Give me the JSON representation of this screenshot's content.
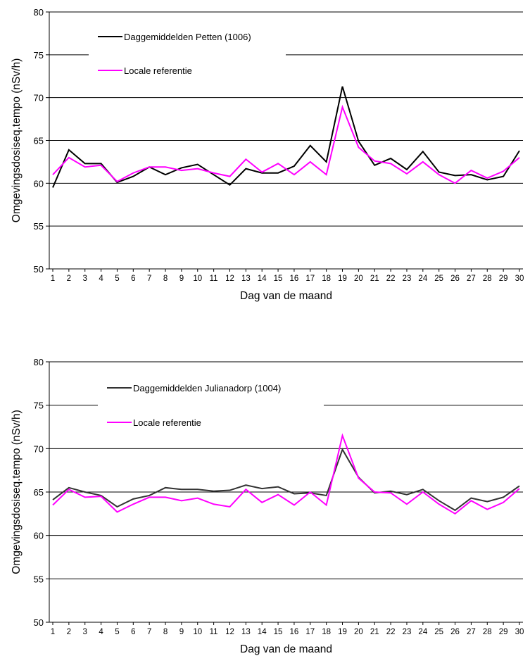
{
  "chart_data": [
    {
      "type": "line",
      "xlabel": "Dag van de maand",
      "ylabel": "Omgevingsdosiseq.tempo (nSv/h)",
      "ylim": [
        50,
        80
      ],
      "yticks": [
        50,
        55,
        60,
        65,
        70,
        75,
        80
      ],
      "grid": true,
      "legend_position": "top-left",
      "x": [
        1,
        2,
        3,
        4,
        5,
        6,
        7,
        8,
        9,
        10,
        11,
        12,
        13,
        14,
        15,
        16,
        17,
        18,
        19,
        20,
        21,
        22,
        23,
        24,
        25,
        26,
        27,
        28,
        29,
        30
      ],
      "series": [
        {
          "name": "Daggemiddelden Petten (1006)",
          "color": "#000000",
          "values": [
            59.5,
            63.9,
            62.3,
            62.3,
            60.1,
            60.8,
            61.9,
            61.0,
            61.8,
            62.2,
            61.0,
            59.8,
            61.7,
            61.2,
            61.2,
            62.0,
            64.4,
            62.5,
            71.3,
            64.9,
            62.1,
            62.9,
            61.6,
            63.7,
            61.3,
            60.9,
            61.0,
            60.4,
            60.8,
            63.8
          ]
        },
        {
          "name": "Locale referentie",
          "color": "#ff00ff",
          "values": [
            61.0,
            63.0,
            61.9,
            62.1,
            60.2,
            61.2,
            61.9,
            61.9,
            61.5,
            61.7,
            61.2,
            60.8,
            62.8,
            61.3,
            62.3,
            61.0,
            62.5,
            61.0,
            68.9,
            64.2,
            62.6,
            62.3,
            61.1,
            62.5,
            61.0,
            60.0,
            61.5,
            60.6,
            61.4,
            63.0
          ]
        }
      ]
    },
    {
      "type": "line",
      "xlabel": "Dag van de maand",
      "ylabel": "Omgevingsdosiseq.tempo (nSv/h)",
      "ylim": [
        50,
        80
      ],
      "yticks": [
        50,
        55,
        60,
        65,
        70,
        75,
        80
      ],
      "grid": true,
      "legend_position": "top-left",
      "x": [
        1,
        2,
        3,
        4,
        5,
        6,
        7,
        8,
        9,
        10,
        11,
        12,
        13,
        14,
        15,
        16,
        17,
        18,
        19,
        20,
        21,
        22,
        23,
        24,
        25,
        26,
        27,
        28,
        29,
        30
      ],
      "series": [
        {
          "name": "Daggemiddelden Julianadorp (1004)",
          "color": "#333333",
          "values": [
            64.1,
            65.5,
            65.0,
            64.6,
            63.3,
            64.2,
            64.6,
            65.5,
            65.3,
            65.3,
            65.1,
            65.2,
            65.8,
            65.4,
            65.6,
            64.8,
            64.9,
            64.6,
            69.9,
            66.7,
            64.9,
            65.1,
            64.7,
            65.3,
            64.0,
            62.9,
            64.3,
            63.9,
            64.4,
            65.7
          ]
        },
        {
          "name": "Locale referentie",
          "color": "#ff00ff",
          "values": [
            63.5,
            65.3,
            64.4,
            64.5,
            62.7,
            63.6,
            64.4,
            64.4,
            64.0,
            64.3,
            63.6,
            63.3,
            65.3,
            63.8,
            64.7,
            63.5,
            65.0,
            63.5,
            71.5,
            66.6,
            65.0,
            64.9,
            63.6,
            65.0,
            63.6,
            62.5,
            64.0,
            63.0,
            63.8,
            65.4
          ]
        }
      ]
    }
  ]
}
